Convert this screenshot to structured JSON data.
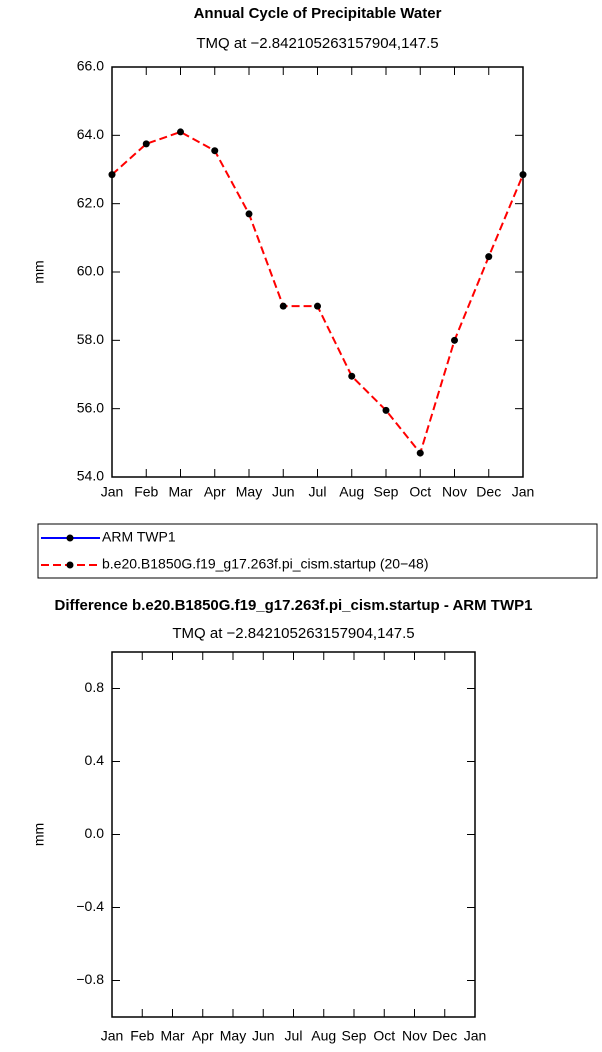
{
  "chart_data": [
    {
      "type": "line",
      "title": "Annual Cycle of Precipitable Water",
      "subtitle": "TMQ at −2.842105263157904,147.5",
      "ylabel": "mm",
      "categories": [
        "Jan",
        "Feb",
        "Mar",
        "Apr",
        "May",
        "Jun",
        "Jul",
        "Aug",
        "Sep",
        "Oct",
        "Nov",
        "Dec",
        "Jan"
      ],
      "ylim": [
        54,
        66
      ],
      "yticks": [
        {
          "value": 54,
          "label": "54.0"
        },
        {
          "value": 56,
          "label": "56.0"
        },
        {
          "value": 58,
          "label": "58.0"
        },
        {
          "value": 60,
          "label": "60.0"
        },
        {
          "value": 62,
          "label": "62.0"
        },
        {
          "value": 64,
          "label": "64.0"
        },
        {
          "value": 66,
          "label": "66.0"
        }
      ],
      "series": [
        {
          "name": "ARM TWP1",
          "color": "#0000ff",
          "dashed": false,
          "values": [
            null,
            null,
            null,
            null,
            null,
            null,
            null,
            null,
            null,
            null,
            null,
            null,
            null
          ]
        },
        {
          "name": "b.e20.B1850G.f19_g17.263f.pi_cism.startup (20−48)",
          "color": "#ff0000",
          "dashed": true,
          "values": [
            62.85,
            63.75,
            64.1,
            63.55,
            61.7,
            59.0,
            59.0,
            56.95,
            55.95,
            54.7,
            58.0,
            60.45,
            62.85
          ]
        }
      ]
    },
    {
      "type": "line",
      "title": "Difference b.e20.B1850G.f19_g17.263f.pi_cism.startup - ARM TWP1",
      "subtitle": "TMQ at −2.842105263157904,147.5",
      "ylabel": "mm",
      "categories": [
        "Jan",
        "Feb",
        "Mar",
        "Apr",
        "May",
        "Jun",
        "Jul",
        "Aug",
        "Sep",
        "Oct",
        "Nov",
        "Dec",
        "Jan"
      ],
      "ylim": [
        -1,
        1
      ],
      "yticks": [
        {
          "value": -0.8,
          "label": "−0.8"
        },
        {
          "value": -0.4,
          "label": "−0.4"
        },
        {
          "value": 0,
          "label": "0.0"
        },
        {
          "value": 0.4,
          "label": "0.4"
        },
        {
          "value": 0.8,
          "label": "0.8"
        }
      ]
    }
  ]
}
